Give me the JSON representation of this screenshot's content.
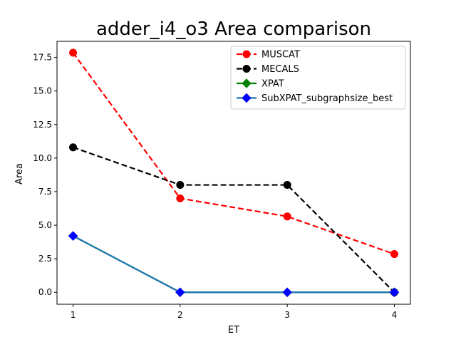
{
  "chart_data": {
    "type": "line",
    "title": "adder_i4_o3 Area comparison",
    "xlabel": "ET",
    "ylabel": "Area",
    "x": [
      1,
      2,
      3,
      4
    ],
    "xlim": [
      0.85,
      4.15
    ],
    "ylim": [
      -0.89,
      18.7
    ],
    "xticks": [
      1,
      2,
      3,
      4
    ],
    "xtick_labels": [
      "1",
      "2",
      "3",
      "4"
    ],
    "yticks": [
      0,
      2.5,
      5,
      7.5,
      10,
      12.5,
      15,
      17.5
    ],
    "ytick_labels": [
      "0.0",
      "2.5",
      "5.0",
      "7.5",
      "10.0",
      "12.5",
      "15.0",
      "17.5"
    ],
    "grid": false,
    "legend_position": "top-right",
    "series": [
      {
        "name": "MUSCAT",
        "values": [
          17.85,
          7.0,
          5.65,
          2.85
        ],
        "color": "#ff0000",
        "linestyle": "dashed",
        "marker": "circle",
        "marker_color": "#ff0000"
      },
      {
        "name": "MECALS",
        "values": [
          10.8,
          8.0,
          8.0,
          0.0
        ],
        "color": "#000000",
        "linestyle": "dashed",
        "marker": "circle",
        "marker_color": "#000000"
      },
      {
        "name": "XPAT",
        "values": [
          4.2,
          0.0,
          0.0,
          0.0
        ],
        "color": "#008000",
        "linestyle": "solid",
        "marker": "diamond",
        "marker_color": "#008000"
      },
      {
        "name": "SubXPAT_subgraphsize_best",
        "values": [
          4.2,
          0.0,
          0.0,
          0.0
        ],
        "color": "#1f77b4",
        "linestyle": "solid",
        "marker": "diamond",
        "marker_color": "#0000ff"
      }
    ]
  }
}
